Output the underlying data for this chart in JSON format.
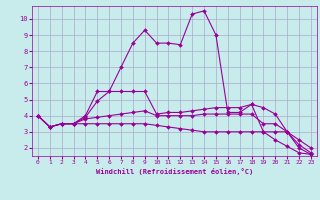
{
  "xlabel": "Windchill (Refroidissement éolien,°C)",
  "bg_color": "#c8ecec",
  "line_color": "#990099",
  "grid_color": "#aaaacc",
  "xlim": [
    -0.5,
    23.5
  ],
  "ylim": [
    1.5,
    10.8
  ],
  "xticks": [
    0,
    1,
    2,
    3,
    4,
    5,
    6,
    7,
    8,
    9,
    10,
    11,
    12,
    13,
    14,
    15,
    16,
    17,
    18,
    19,
    20,
    21,
    22,
    23
  ],
  "yticks": [
    2,
    3,
    4,
    5,
    6,
    7,
    8,
    9,
    10
  ],
  "curves": [
    {
      "x": [
        0,
        1,
        2,
        3,
        4,
        5,
        6,
        7,
        8,
        9,
        10,
        11,
        12,
        13,
        14,
        15,
        16,
        17,
        18,
        19,
        20,
        21,
        22,
        23
      ],
      "y": [
        4.0,
        3.3,
        3.5,
        3.5,
        4.0,
        5.5,
        5.5,
        7.0,
        8.5,
        9.3,
        8.5,
        8.5,
        8.4,
        10.3,
        10.5,
        9.0,
        4.2,
        4.2,
        4.7,
        3.0,
        2.5,
        2.1,
        1.7,
        1.6
      ]
    },
    {
      "x": [
        0,
        1,
        2,
        3,
        4,
        5,
        6,
        7,
        8,
        9,
        10,
        11,
        12,
        13,
        14,
        15,
        16,
        17,
        18,
        19,
        20,
        21,
        22,
        23
      ],
      "y": [
        4.0,
        3.3,
        3.5,
        3.5,
        3.9,
        4.9,
        5.5,
        5.5,
        5.5,
        5.5,
        4.1,
        4.2,
        4.2,
        4.3,
        4.4,
        4.5,
        4.5,
        4.5,
        4.7,
        4.5,
        4.1,
        3.0,
        2.5,
        2.0
      ]
    },
    {
      "x": [
        0,
        1,
        2,
        3,
        4,
        5,
        6,
        7,
        8,
        9,
        10,
        11,
        12,
        13,
        14,
        15,
        16,
        17,
        18,
        19,
        20,
        21,
        22,
        23
      ],
      "y": [
        4.0,
        3.3,
        3.5,
        3.5,
        3.8,
        3.9,
        4.0,
        4.1,
        4.2,
        4.3,
        4.0,
        4.0,
        4.0,
        4.0,
        4.1,
        4.1,
        4.1,
        4.1,
        4.1,
        3.5,
        3.5,
        3.0,
        2.2,
        1.7
      ]
    },
    {
      "x": [
        0,
        1,
        2,
        3,
        4,
        5,
        6,
        7,
        8,
        9,
        10,
        11,
        12,
        13,
        14,
        15,
        16,
        17,
        18,
        19,
        20,
        21,
        22,
        23
      ],
      "y": [
        4.0,
        3.3,
        3.5,
        3.5,
        3.5,
        3.5,
        3.5,
        3.5,
        3.5,
        3.5,
        3.4,
        3.3,
        3.2,
        3.1,
        3.0,
        3.0,
        3.0,
        3.0,
        3.0,
        3.0,
        3.0,
        3.0,
        2.0,
        1.6
      ]
    }
  ]
}
